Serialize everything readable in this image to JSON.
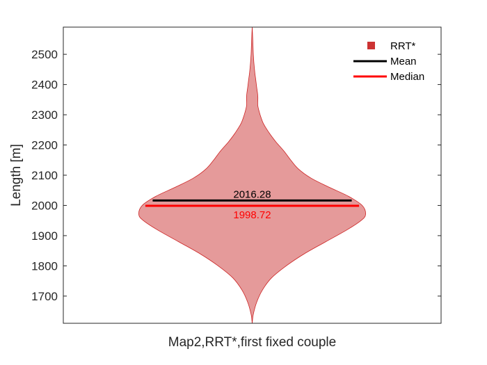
{
  "chart_data": {
    "type": "violin",
    "xlabel": "Map2,RRT*,first fixed couple",
    "ylabel": "Length [m]",
    "ylim": [
      1610,
      2590
    ],
    "yticks": [
      1700,
      1800,
      1900,
      2000,
      2100,
      2200,
      2300,
      2400,
      2500
    ],
    "grid": false,
    "legend_position": "top-right",
    "colors": {
      "violin_fill": "#e59a9a",
      "violin_edge": "#cc2222",
      "legend_marker": "#cc3333",
      "mean": "#000000",
      "median": "#ff0000"
    },
    "legend": [
      {
        "label": "RRT*",
        "kind": "marker"
      },
      {
        "label": "Mean",
        "kind": "line"
      },
      {
        "label": "Median",
        "kind": "line"
      }
    ],
    "series": [
      {
        "name": "RRT*",
        "mean": 2016.28,
        "median": 1998.72,
        "mean_label": "2016.28",
        "median_label": "1998.72",
        "density": [
          {
            "y": 1610,
            "w": 0.0
          },
          {
            "y": 1640,
            "w": 0.01
          },
          {
            "y": 1680,
            "w": 0.04
          },
          {
            "y": 1720,
            "w": 0.09
          },
          {
            "y": 1760,
            "w": 0.17
          },
          {
            "y": 1800,
            "w": 0.3
          },
          {
            "y": 1840,
            "w": 0.46
          },
          {
            "y": 1880,
            "w": 0.65
          },
          {
            "y": 1920,
            "w": 0.84
          },
          {
            "y": 1950,
            "w": 0.96
          },
          {
            "y": 1970,
            "w": 1.0
          },
          {
            "y": 2000,
            "w": 0.97
          },
          {
            "y": 2030,
            "w": 0.85
          },
          {
            "y": 2060,
            "w": 0.68
          },
          {
            "y": 2090,
            "w": 0.52
          },
          {
            "y": 2120,
            "w": 0.41
          },
          {
            "y": 2150,
            "w": 0.34
          },
          {
            "y": 2180,
            "w": 0.28
          },
          {
            "y": 2210,
            "w": 0.21
          },
          {
            "y": 2240,
            "w": 0.15
          },
          {
            "y": 2270,
            "w": 0.1
          },
          {
            "y": 2300,
            "w": 0.07
          },
          {
            "y": 2330,
            "w": 0.05
          },
          {
            "y": 2360,
            "w": 0.05
          },
          {
            "y": 2390,
            "w": 0.04
          },
          {
            "y": 2420,
            "w": 0.03
          },
          {
            "y": 2450,
            "w": 0.02
          },
          {
            "y": 2500,
            "w": 0.01
          },
          {
            "y": 2550,
            "w": 0.005
          },
          {
            "y": 2590,
            "w": 0.0
          }
        ]
      }
    ]
  }
}
